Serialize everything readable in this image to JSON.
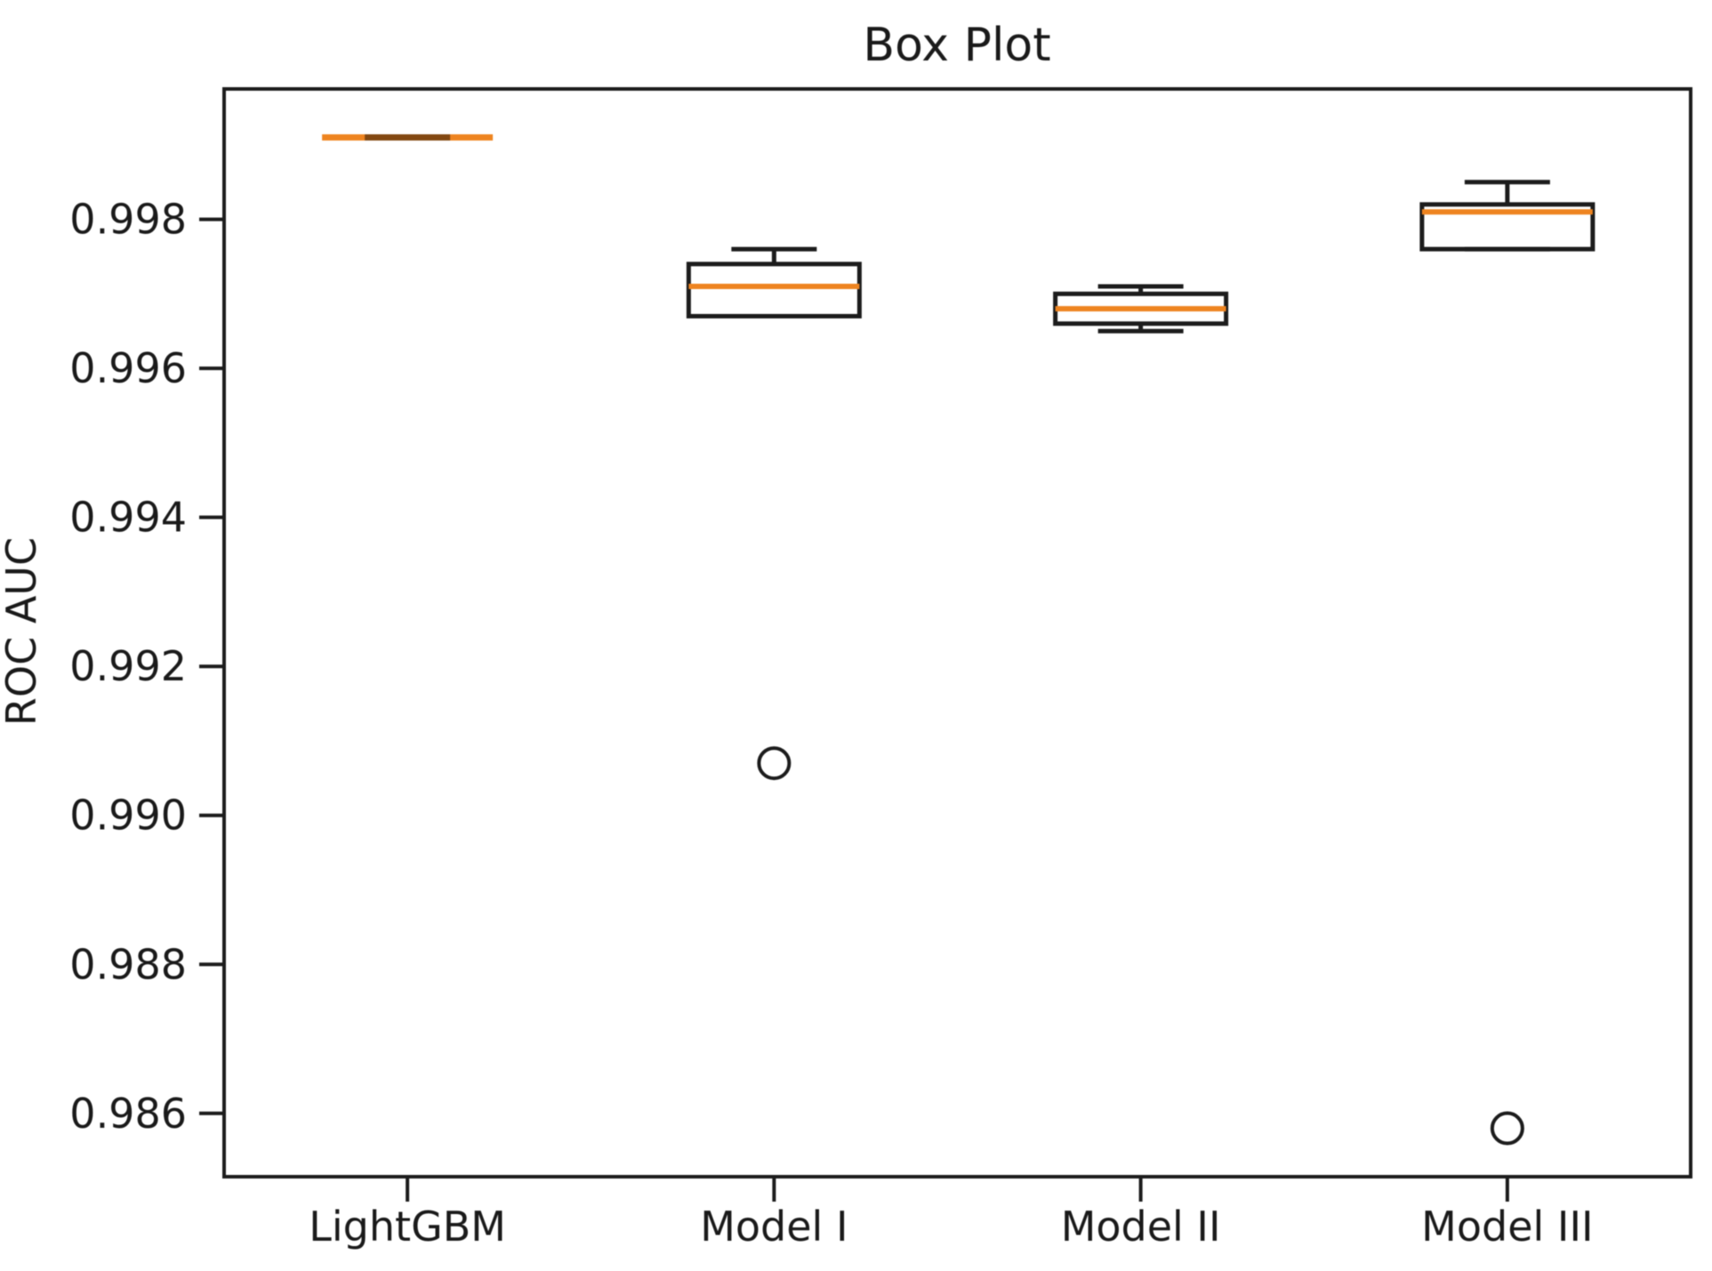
{
  "chart_data": {
    "type": "boxplot",
    "title": "Box Plot",
    "xlabel": "",
    "ylabel": "ROC AUC",
    "categories": [
      "LightGBM",
      "Model I",
      "Model II",
      "Model III"
    ],
    "ylim": [
      0.98515,
      0.99975
    ],
    "yticks": [
      0.986,
      0.988,
      0.99,
      0.992,
      0.994,
      0.996,
      0.998
    ],
    "ytick_labels": [
      "0.986",
      "0.988",
      "0.990",
      "0.992",
      "0.994",
      "0.996",
      "0.998"
    ],
    "grid": false,
    "legend": "none",
    "colors": {
      "line": "#1c1c1c",
      "median": "#ee8420",
      "background": "#ffffff"
    },
    "series": [
      {
        "name": "LightGBM",
        "whislo": 0.9991,
        "q1": 0.9991,
        "med": 0.9991,
        "q3": 0.9991,
        "whishi": 0.9991,
        "fliers": []
      },
      {
        "name": "Model I",
        "whislo": 0.9967,
        "q1": 0.9967,
        "med": 0.9971,
        "q3": 0.9974,
        "whishi": 0.9976,
        "fliers": [
          0.9907
        ]
      },
      {
        "name": "Model II",
        "whislo": 0.9965,
        "q1": 0.9966,
        "med": 0.9968,
        "q3": 0.997,
        "whishi": 0.9971,
        "fliers": []
      },
      {
        "name": "Model III",
        "whislo": 0.9976,
        "q1": 0.9976,
        "med": 0.9981,
        "q3": 0.9982,
        "whishi": 0.9985,
        "fliers": [
          0.9858
        ]
      }
    ]
  }
}
